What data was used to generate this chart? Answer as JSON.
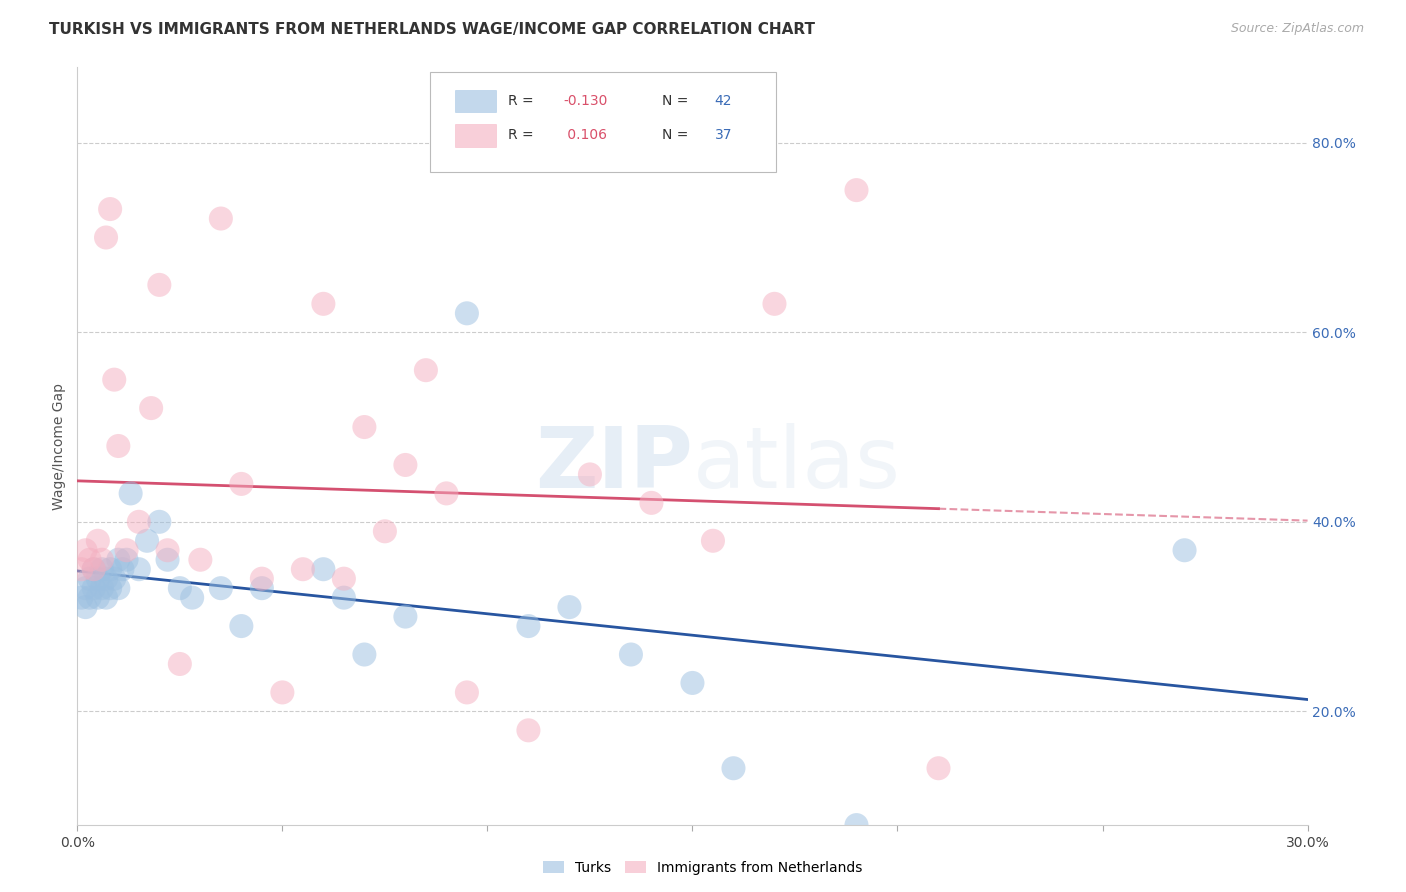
{
  "title": "TURKISH VS IMMIGRANTS FROM NETHERLANDS WAGE/INCOME GAP CORRELATION CHART",
  "source": "Source: ZipAtlas.com",
  "ylabel": "Wage/Income Gap",
  "watermark_zip": "ZIP",
  "watermark_atlas": "atlas",
  "xlim": [
    0.0,
    0.3
  ],
  "ylim": [
    0.08,
    0.88
  ],
  "xtick_pos": [
    0.0,
    0.05,
    0.1,
    0.15,
    0.2,
    0.25,
    0.3
  ],
  "xtick_labels": [
    "0.0%",
    "",
    "",
    "",
    "",
    "",
    "30.0%"
  ],
  "ytick_right": [
    0.2,
    0.4,
    0.6,
    0.8
  ],
  "ytick_right_labels": [
    "20.0%",
    "40.0%",
    "60.0%",
    "80.0%"
  ],
  "background_color": "#ffffff",
  "grid_color": "#cccccc",
  "turks_color": "#9bbfe0",
  "netherlands_color": "#f4afc0",
  "turks_line_color": "#2855a0",
  "netherlands_line_color": "#d45070",
  "turks_R": -0.13,
  "turks_N": 42,
  "netherlands_R": 0.106,
  "netherlands_N": 37,
  "turks_x": [
    0.001,
    0.002,
    0.002,
    0.003,
    0.003,
    0.004,
    0.004,
    0.005,
    0.005,
    0.006,
    0.006,
    0.007,
    0.007,
    0.008,
    0.008,
    0.009,
    0.01,
    0.01,
    0.011,
    0.012,
    0.013,
    0.015,
    0.017,
    0.02,
    0.022,
    0.025,
    0.028,
    0.035,
    0.04,
    0.045,
    0.06,
    0.065,
    0.07,
    0.08,
    0.095,
    0.11,
    0.12,
    0.135,
    0.15,
    0.16,
    0.27,
    0.19
  ],
  "turks_y": [
    0.32,
    0.31,
    0.33,
    0.34,
    0.32,
    0.33,
    0.35,
    0.32,
    0.34,
    0.33,
    0.35,
    0.32,
    0.34,
    0.33,
    0.35,
    0.34,
    0.36,
    0.33,
    0.35,
    0.36,
    0.43,
    0.35,
    0.38,
    0.4,
    0.36,
    0.33,
    0.32,
    0.33,
    0.29,
    0.33,
    0.35,
    0.32,
    0.26,
    0.3,
    0.62,
    0.29,
    0.31,
    0.26,
    0.23,
    0.14,
    0.37,
    0.08
  ],
  "netherlands_x": [
    0.001,
    0.002,
    0.003,
    0.004,
    0.005,
    0.006,
    0.007,
    0.008,
    0.009,
    0.01,
    0.012,
    0.015,
    0.018,
    0.02,
    0.022,
    0.025,
    0.03,
    0.035,
    0.04,
    0.045,
    0.05,
    0.055,
    0.06,
    0.065,
    0.07,
    0.075,
    0.08,
    0.085,
    0.09,
    0.095,
    0.11,
    0.125,
    0.14,
    0.155,
    0.17,
    0.19,
    0.21
  ],
  "netherlands_y": [
    0.35,
    0.37,
    0.36,
    0.35,
    0.38,
    0.36,
    0.7,
    0.73,
    0.55,
    0.48,
    0.37,
    0.4,
    0.52,
    0.65,
    0.37,
    0.25,
    0.36,
    0.72,
    0.44,
    0.34,
    0.22,
    0.35,
    0.63,
    0.34,
    0.5,
    0.39,
    0.46,
    0.56,
    0.43,
    0.22,
    0.18,
    0.45,
    0.42,
    0.38,
    0.63,
    0.75,
    0.14
  ],
  "legend_turks_label": "Turks",
  "legend_netherlands_label": "Immigrants from Netherlands"
}
